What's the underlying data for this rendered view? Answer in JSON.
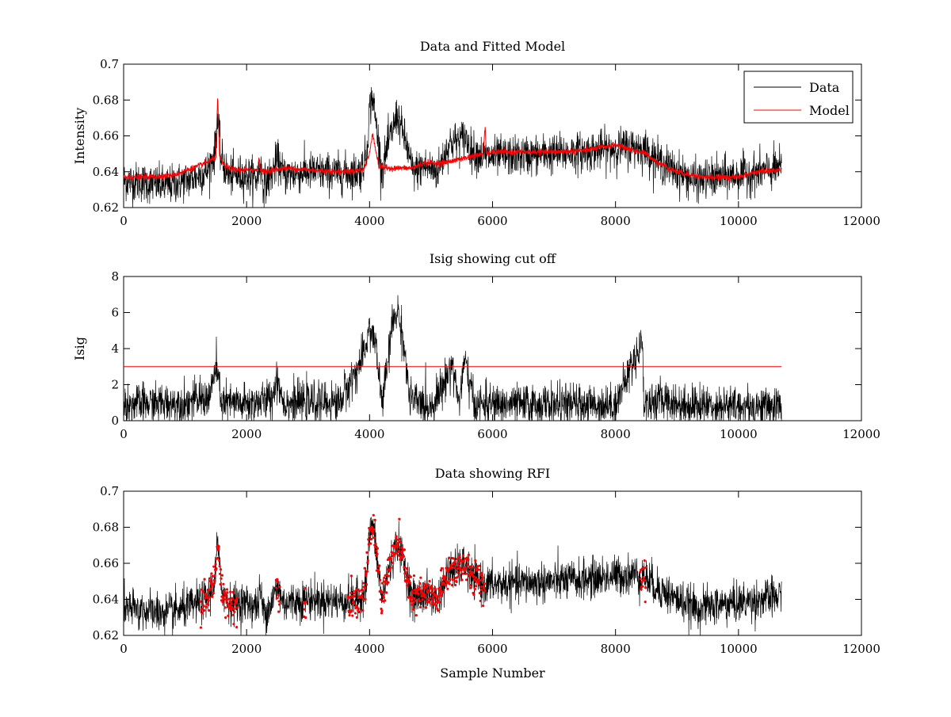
{
  "chart_data": [
    {
      "type": "line",
      "title": "Data and Fitted Model",
      "xlabel": "",
      "ylabel": "Intensity",
      "xlim": [
        0,
        12000
      ],
      "ylim": [
        0.62,
        0.7
      ],
      "xticks": [
        0,
        2000,
        4000,
        6000,
        8000,
        10000,
        12000
      ],
      "yticks": [
        0.62,
        0.64,
        0.66,
        0.68,
        0.7
      ],
      "grid": false,
      "legend": {
        "position": "top-right",
        "entries": [
          "Data",
          "Model"
        ]
      },
      "series": [
        {
          "name": "Data",
          "color": "#000000",
          "noise": 0.0055,
          "x": [
            0,
            300,
            700,
            1100,
            1350,
            1480,
            1530,
            1580,
            1700,
            2000,
            2180,
            2220,
            2280,
            2400,
            2480,
            2520,
            2600,
            3000,
            3500,
            3850,
            3950,
            4000,
            4050,
            4150,
            4200,
            4300,
            4450,
            4600,
            4700,
            4900,
            5100,
            5300,
            5500,
            5550,
            5650,
            5900,
            6500,
            7000,
            7500,
            8000,
            8300,
            8500,
            8700,
            9000,
            9300,
            9700,
            10000,
            10400,
            10700
          ],
          "y": [
            0.635,
            0.634,
            0.632,
            0.636,
            0.64,
            0.65,
            0.672,
            0.648,
            0.638,
            0.638,
            0.636,
            0.645,
            0.632,
            0.638,
            0.645,
            0.646,
            0.638,
            0.64,
            0.639,
            0.64,
            0.65,
            0.675,
            0.682,
            0.655,
            0.64,
            0.655,
            0.672,
            0.655,
            0.64,
            0.643,
            0.64,
            0.656,
            0.658,
            0.66,
            0.652,
            0.648,
            0.649,
            0.65,
            0.651,
            0.653,
            0.654,
            0.652,
            0.646,
            0.64,
            0.635,
            0.637,
            0.638,
            0.64,
            0.642
          ]
        },
        {
          "name": "Model",
          "color": "#ff0000",
          "noise": 0.0008,
          "x": [
            0,
            300,
            800,
            1200,
            1400,
            1500,
            1530,
            1560,
            1650,
            1800,
            2100,
            2180,
            2200,
            2230,
            2300,
            2600,
            3500,
            3900,
            4000,
            4050,
            4100,
            4150,
            4300,
            4700,
            4900,
            5200,
            5600,
            5850,
            5880,
            5900,
            6000,
            6500,
            7000,
            7500,
            8000,
            8500,
            8700,
            9000,
            9400,
            10000,
            10300,
            10700
          ],
          "y": [
            0.637,
            0.637,
            0.638,
            0.643,
            0.646,
            0.648,
            0.682,
            0.648,
            0.643,
            0.641,
            0.641,
            0.641,
            0.648,
            0.641,
            0.64,
            0.642,
            0.64,
            0.641,
            0.65,
            0.662,
            0.652,
            0.643,
            0.642,
            0.642,
            0.645,
            0.645,
            0.648,
            0.65,
            0.665,
            0.65,
            0.651,
            0.651,
            0.651,
            0.652,
            0.655,
            0.65,
            0.645,
            0.64,
            0.637,
            0.637,
            0.64,
            0.641
          ]
        }
      ]
    },
    {
      "type": "line",
      "title": "Isig showing cut off",
      "xlabel": "",
      "ylabel": "Isig",
      "xlim": [
        0,
        12000
      ],
      "ylim": [
        0,
        8
      ],
      "xticks": [
        0,
        2000,
        4000,
        6000,
        8000,
        10000,
        12000
      ],
      "yticks": [
        0,
        2,
        4,
        6,
        8
      ],
      "grid": false,
      "series": [
        {
          "color": "#000000",
          "noise": 0.55,
          "x": [
            0,
            1000,
            1400,
            1500,
            1600,
            2000,
            2400,
            2500,
            2600,
            3500,
            3900,
            4000,
            4100,
            4200,
            4300,
            4350,
            4450,
            4550,
            4650,
            4800,
            5000,
            5200,
            5350,
            5450,
            5550,
            5700,
            6000,
            7000,
            8000,
            8440,
            8460,
            8800,
            9000,
            10000,
            10700
          ],
          "y": [
            0.9,
            1.0,
            1.3,
            3.0,
            1.0,
            0.9,
            1.2,
            2.4,
            1.0,
            1.0,
            3.5,
            5.2,
            4.2,
            1.0,
            3.2,
            5.0,
            6.2,
            4.5,
            1.2,
            1.0,
            0.8,
            2.0,
            3.2,
            1.0,
            3.3,
            0.9,
            0.9,
            0.9,
            0.9,
            4.5,
            0.9,
            1.2,
            0.9,
            0.8,
            0.8
          ]
        },
        {
          "name": "cut off",
          "color": "#ff0000",
          "noise": 0,
          "x": [
            0,
            10700
          ],
          "y": [
            3,
            3
          ]
        }
      ]
    },
    {
      "type": "scatter",
      "title": "Data showing RFI",
      "xlabel": "Sample Number",
      "ylabel": "",
      "xlim": [
        0,
        12000
      ],
      "ylim": [
        0.62,
        0.7
      ],
      "xticks": [
        0,
        2000,
        4000,
        6000,
        8000,
        10000,
        12000
      ],
      "yticks": [
        0.62,
        0.64,
        0.66,
        0.68,
        0.7
      ],
      "grid": false,
      "series": [
        {
          "color": "#000000",
          "noise": 0.0055,
          "x": [
            0,
            300,
            700,
            1100,
            1350,
            1480,
            1530,
            1580,
            1700,
            2000,
            2180,
            2220,
            2280,
            2400,
            2480,
            2520,
            2600,
            3000,
            3500,
            3850,
            3950,
            4000,
            4050,
            4150,
            4200,
            4300,
            4450,
            4600,
            4700,
            4900,
            5100,
            5300,
            5500,
            5550,
            5650,
            5900,
            6500,
            7000,
            7500,
            8000,
            8300,
            8500,
            8700,
            9000,
            9300,
            9700,
            10000,
            10400,
            10700
          ],
          "y": [
            0.635,
            0.634,
            0.632,
            0.636,
            0.64,
            0.65,
            0.672,
            0.648,
            0.638,
            0.638,
            0.636,
            0.645,
            0.632,
            0.638,
            0.645,
            0.646,
            0.638,
            0.64,
            0.639,
            0.64,
            0.65,
            0.675,
            0.682,
            0.655,
            0.64,
            0.655,
            0.672,
            0.655,
            0.64,
            0.643,
            0.64,
            0.656,
            0.658,
            0.66,
            0.652,
            0.648,
            0.649,
            0.65,
            0.651,
            0.653,
            0.654,
            0.652,
            0.646,
            0.64,
            0.635,
            0.637,
            0.638,
            0.64,
            0.642
          ]
        },
        {
          "name": "RFI",
          "color": "#ff0000",
          "marker": "dot",
          "x_ranges": [
            [
              1250,
              1850
            ],
            [
              2480,
              2540
            ],
            [
              2930,
              2970
            ],
            [
              3650,
              5880
            ],
            [
              8400,
              8500
            ]
          ]
        }
      ]
    }
  ]
}
